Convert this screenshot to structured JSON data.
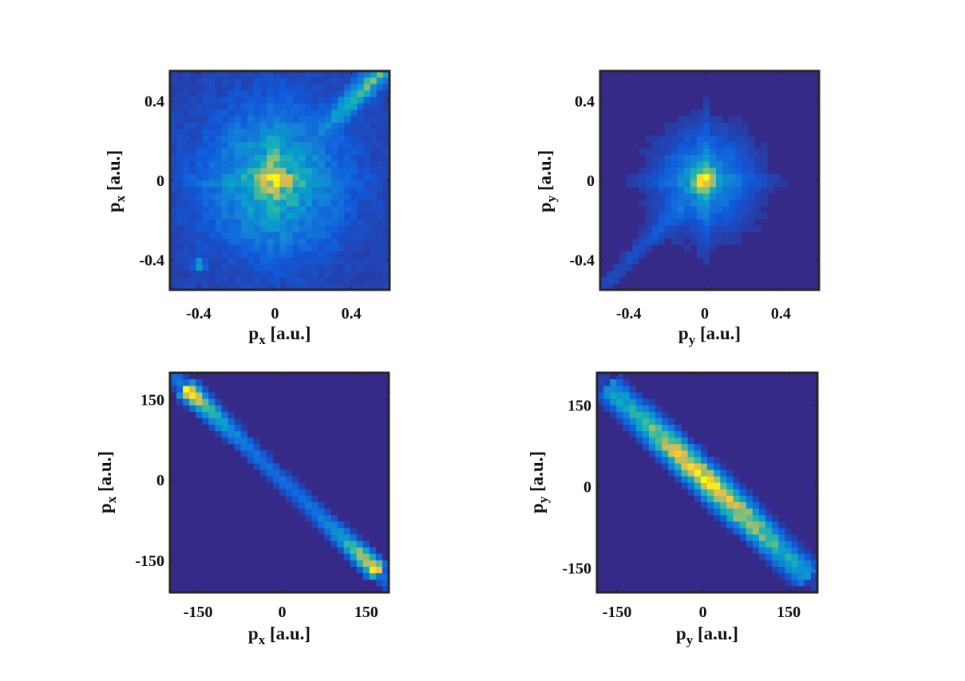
{
  "figure": {
    "background": "#ffffff",
    "colormap": [
      "#352a87",
      "#0f5cdd",
      "#1481d6",
      "#06a4ca",
      "#2eb7a4",
      "#87bf77",
      "#d1bb59",
      "#fec832",
      "#f9fb0e"
    ]
  },
  "chart_data": [
    {
      "id": "top-left",
      "type": "heatmap",
      "xlabel": {
        "main": "p",
        "sub": "x",
        "unit": " [a.u.]"
      },
      "ylabel": {
        "main": "p",
        "sub": "x",
        "unit": " [a.u.]"
      },
      "xlim": [
        -0.55,
        0.6
      ],
      "ylim": [
        -0.55,
        0.55
      ],
      "xticks": [
        -0.4,
        0,
        0.4
      ],
      "yticks": [
        -0.4,
        0,
        0.4
      ],
      "xtick_labels": [
        "-0.4",
        "0",
        "0.4"
      ],
      "ytick_labels": [
        "-0.4",
        "0",
        "0.4"
      ],
      "bins": [
        34,
        34
      ],
      "distribution": "broad central blob with maximum near (0, 0), horizontal stripe along p=0, diagonal streak toward (0.5, 0.5), weak spot near (-0.4, -0.4)",
      "grid": false
    },
    {
      "id": "top-right",
      "type": "heatmap",
      "xlabel": {
        "main": "p",
        "sub": "y",
        "unit": " [a.u.]"
      },
      "ylabel": {
        "main": "p",
        "sub": "y",
        "unit": " [a.u.]"
      },
      "xlim": [
        -0.55,
        0.6
      ],
      "ylim": [
        -0.55,
        0.55
      ],
      "xticks": [
        -0.4,
        0,
        0.4
      ],
      "yticks": [
        -0.4,
        0,
        0.4
      ],
      "xtick_labels": [
        "-0.4",
        "0",
        "0.4"
      ],
      "ytick_labels": [
        "-0.4",
        "0",
        "0.4"
      ],
      "bins": [
        34,
        34
      ],
      "distribution": "sharp peak at (0, 0) with cross-shaped spread and faint diagonal tail toward (-0.4, -0.4)",
      "grid": false
    },
    {
      "id": "bottom-left",
      "type": "heatmap",
      "xlabel": {
        "main": "p",
        "sub": "x",
        "unit": " [a.u.]"
      },
      "ylabel": {
        "main": "p",
        "sub": "x",
        "unit": " [a.u.]"
      },
      "xlim": [
        -200,
        190
      ],
      "ylim": [
        -210,
        200
      ],
      "xticks": [
        -150,
        0,
        150
      ],
      "yticks": [
        -150,
        0,
        150
      ],
      "xtick_labels": [
        "-150",
        "0",
        "150"
      ],
      "ytick_labels": [
        "-150",
        "0",
        "150"
      ],
      "bins": [
        34,
        34
      ],
      "distribution": "narrow anti-diagonal band from (-160, 170) to (160, -170), brightest at both ends",
      "grid": false
    },
    {
      "id": "bottom-right",
      "type": "heatmap",
      "xlabel": {
        "main": "p",
        "sub": "y",
        "unit": " [a.u.]"
      },
      "ylabel": {
        "main": "p",
        "sub": "y",
        "unit": " [a.u.]"
      },
      "xlim": [
        -185,
        200
      ],
      "ylim": [
        -195,
        210
      ],
      "xticks": [
        -150,
        0,
        150
      ],
      "yticks": [
        -150,
        0,
        150
      ],
      "xtick_labels": [
        "-150",
        "0",
        "150"
      ],
      "ytick_labels": [
        "-150",
        "0",
        "150"
      ],
      "bins": [
        34,
        34
      ],
      "distribution": "broader anti-diagonal band from (-160, 190) to (160, -160), brightest in the central region",
      "grid": false
    }
  ]
}
